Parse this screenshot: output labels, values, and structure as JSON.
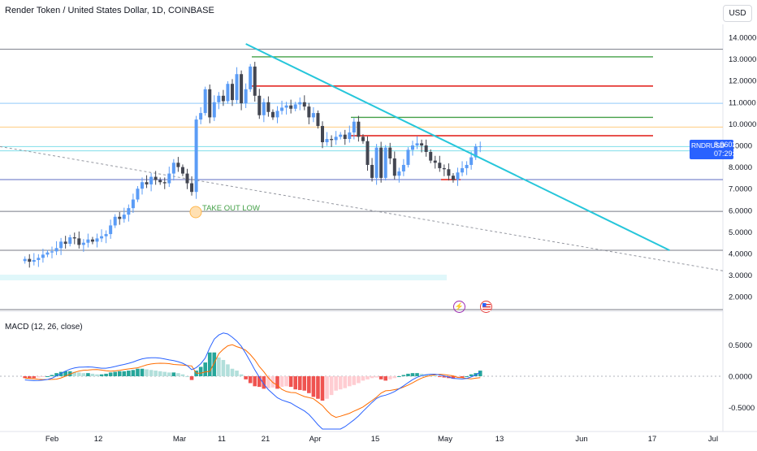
{
  "header": {
    "title": "Render Token / United States Dollar, 1D, COINBASE",
    "currency": "USD"
  },
  "price_axis": {
    "labels": [
      "14.0000",
      "13.0000",
      "12.0000",
      "11.0000",
      "10.0000",
      "9.0000",
      "8.0000",
      "7.0000",
      "6.0000",
      "5.0000",
      "4.0000",
      "3.0000",
      "2.0000"
    ]
  },
  "price_tag": {
    "symbol": "RNDRUSD",
    "value": "8.9603",
    "countdown": "07:29:19"
  },
  "annotation": {
    "text": "TAKE OUT LOW"
  },
  "macd": {
    "label": "MACD (12, 26, close)",
    "axis_labels": [
      "0.5000",
      "0.0000",
      "-0.5000"
    ]
  },
  "time_axis": {
    "labels": [
      "Feb",
      "12",
      "Mar",
      "11",
      "21",
      "Apr",
      "15",
      "May",
      "13",
      "Jun",
      "17",
      "Jul"
    ]
  },
  "events": {
    "bolt_icon": "lightning-icon",
    "flag_icon": "us-flag-icon"
  },
  "colors": {
    "up": "#5b9cf6",
    "down": "#434651",
    "trendline": "#26c6da",
    "resistance_red": "#e53935",
    "level_green": "#43a047",
    "macd_line": "#2962ff",
    "signal_line": "#ff6d00",
    "hist_up": "#26a69a",
    "hist_down": "#ef5350",
    "tag_bg": "#2962ff"
  },
  "chart_data": {
    "type": "candlestick",
    "x": [
      "2024-01-26",
      "2024-01-27",
      "2024-01-28",
      "2024-01-29",
      "2024-01-30",
      "2024-01-31",
      "2024-02-01",
      "2024-02-02",
      "2024-02-03",
      "2024-02-04",
      "2024-02-05",
      "2024-02-06",
      "2024-02-07",
      "2024-02-08",
      "2024-02-09",
      "2024-02-10",
      "2024-02-11",
      "2024-02-12",
      "2024-02-13",
      "2024-02-14",
      "2024-02-15",
      "2024-02-16",
      "2024-02-17",
      "2024-02-18",
      "2024-02-19",
      "2024-02-20",
      "2024-02-21",
      "2024-02-22",
      "2024-02-23",
      "2024-02-24",
      "2024-02-25",
      "2024-02-26",
      "2024-02-27",
      "2024-02-28",
      "2024-02-29",
      "2024-03-01",
      "2024-03-02",
      "2024-03-03",
      "2024-03-04",
      "2024-03-05",
      "2024-03-06",
      "2024-03-07",
      "2024-03-08",
      "2024-03-09",
      "2024-03-10",
      "2024-03-11",
      "2024-03-12",
      "2024-03-13",
      "2024-03-14",
      "2024-03-15",
      "2024-03-16",
      "2024-03-17",
      "2024-03-18",
      "2024-03-19",
      "2024-03-20",
      "2024-03-21",
      "2024-03-22",
      "2024-03-23",
      "2024-03-24",
      "2024-03-25",
      "2024-03-26",
      "2024-03-27",
      "2024-03-28",
      "2024-03-29",
      "2024-03-30",
      "2024-03-31",
      "2024-04-01",
      "2024-04-02",
      "2024-04-03",
      "2024-04-04",
      "2024-04-05",
      "2024-04-06",
      "2024-04-07",
      "2024-04-08",
      "2024-04-09",
      "2024-04-10",
      "2024-04-11",
      "2024-04-12",
      "2024-04-13",
      "2024-04-14",
      "2024-04-15",
      "2024-04-16",
      "2024-04-17",
      "2024-04-18",
      "2024-04-19",
      "2024-04-20",
      "2024-04-21",
      "2024-04-22",
      "2024-04-23",
      "2024-04-24",
      "2024-04-25",
      "2024-04-26",
      "2024-04-27",
      "2024-04-28",
      "2024-04-29",
      "2024-04-30",
      "2024-05-01",
      "2024-05-02",
      "2024-05-03",
      "2024-05-04",
      "2024-05-05",
      "2024-05-06"
    ],
    "close": [
      3.75,
      3.62,
      3.7,
      3.8,
      3.95,
      4.05,
      4.1,
      4.25,
      4.55,
      4.45,
      4.75,
      4.7,
      4.4,
      4.5,
      4.65,
      4.55,
      4.7,
      4.8,
      4.9,
      5.3,
      5.7,
      5.6,
      5.8,
      6.1,
      6.5,
      7.0,
      7.3,
      7.2,
      7.55,
      7.4,
      7.3,
      7.25,
      7.7,
      8.2,
      8.0,
      7.7,
      7.25,
      6.85,
      10.2,
      10.5,
      11.6,
      10.3,
      11.0,
      11.3,
      11.05,
      11.85,
      11.1,
      12.3,
      10.95,
      11.6,
      12.65,
      11.3,
      10.4,
      11.0,
      10.55,
      10.3,
      10.6,
      10.75,
      10.85,
      10.7,
      10.9,
      11.0,
      10.8,
      10.3,
      10.5,
      9.9,
      9.15,
      9.3,
      9.25,
      9.4,
      9.5,
      9.3,
      9.6,
      10.1,
      9.4,
      9.2,
      8.1,
      7.5,
      8.9,
      7.5,
      8.9,
      8.4,
      7.6,
      7.8,
      8.1,
      8.8,
      9.0,
      9.1,
      9.0,
      8.7,
      8.3,
      8.2,
      7.95,
      7.9,
      7.6,
      7.4,
      7.75,
      7.95,
      8.1,
      8.45,
      8.96,
      8.96
    ],
    "trendline": {
      "from": [
        "2024-03-15",
        13.7
      ],
      "to": [
        "2024-06-17",
        4.15
      ]
    },
    "horizontal_levels": [
      13.45,
      13.1,
      11.75,
      10.95,
      10.3,
      9.85,
      9.45,
      8.95,
      8.75,
      7.42,
      5.95,
      4.15,
      1.55
    ],
    "macd": {
      "histogram": [
        -0.03,
        -0.03,
        -0.03,
        -0.02,
        -0.01,
        0.0,
        0.02,
        0.05,
        0.07,
        0.08,
        0.08,
        0.07,
        0.06,
        0.05,
        0.05,
        0.04,
        0.03,
        0.03,
        0.04,
        0.06,
        0.07,
        0.08,
        0.08,
        0.09,
        0.1,
        0.12,
        0.12,
        0.11,
        0.1,
        0.09,
        0.08,
        0.07,
        0.06,
        0.06,
        0.05,
        0.03,
        0.0,
        -0.06,
        0.09,
        0.15,
        0.22,
        0.38,
        0.38,
        0.3,
        0.26,
        0.19,
        0.12,
        0.09,
        0.03,
        -0.05,
        -0.11,
        -0.16,
        -0.17,
        -0.2,
        -0.19,
        -0.18,
        -0.2,
        -0.17,
        -0.16,
        -0.17,
        -0.21,
        -0.22,
        -0.23,
        -0.27,
        -0.33,
        -0.36,
        -0.39,
        -0.36,
        -0.3,
        -0.23,
        -0.21,
        -0.19,
        -0.16,
        -0.14,
        -0.11,
        -0.07,
        -0.05,
        -0.03,
        -0.02,
        -0.05,
        -0.07,
        -0.05,
        -0.03,
        0.0,
        0.02,
        0.04,
        0.05,
        0.05,
        0.04,
        0.03,
        0.02,
        0.01,
        -0.01,
        -0.02,
        -0.03,
        -0.04,
        -0.02,
        -0.02,
        0.0,
        0.03,
        0.05,
        0.09
      ],
      "ylim": [
        -0.65,
        0.95
      ]
    }
  }
}
